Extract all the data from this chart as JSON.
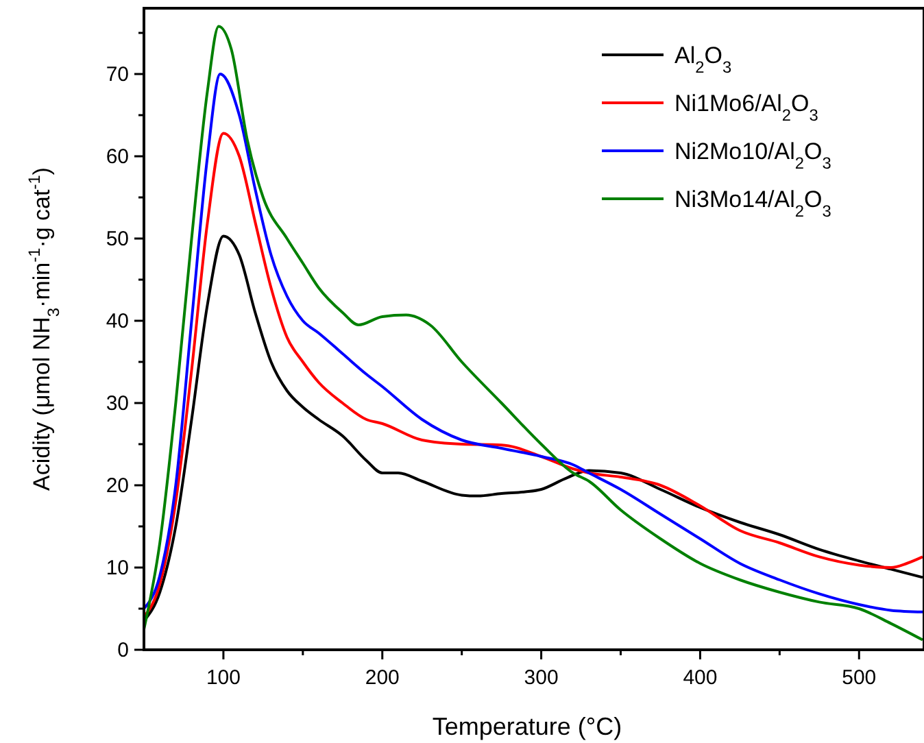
{
  "chart_data": {
    "type": "line",
    "xlabel": "Temperature (°C)",
    "ylabel": "Acidity (μmol NH$_{3}$·min$^{-1}$·g cat$^{-1}$)",
    "xlim": [
      50,
      540
    ],
    "ylim": [
      0,
      78
    ],
    "xticks": [
      100,
      {
        "value": 150,
        "label": null
      },
      200,
      {
        "value": 250,
        "label": null
      },
      300,
      {
        "value": 350,
        "label": null
      },
      400,
      {
        "value": 450,
        "label": null
      },
      500
    ],
    "yticks": [
      0,
      {
        "value": 5,
        "label": null
      },
      10,
      {
        "value": 15,
        "label": null
      },
      20,
      {
        "value": 25,
        "label": null
      },
      30,
      {
        "value": 35,
        "label": null
      },
      40,
      {
        "value": 45,
        "label": null
      },
      50,
      {
        "value": 55,
        "label": null
      },
      60,
      {
        "value": 65,
        "label": null
      },
      70,
      {
        "value": 75,
        "label": null
      }
    ],
    "legend": "top right",
    "grid": false,
    "marker": "none",
    "line_style": "solid",
    "series": [
      {
        "name": "Al$_{2}$O$_{3}$",
        "color": "#000000",
        "x": [
          50,
          60,
          70,
          80,
          90,
          100,
          110,
          120,
          130,
          140,
          150,
          160,
          175,
          190,
          200,
          210,
          225,
          250,
          260,
          275,
          290,
          300,
          315,
          330,
          350,
          375,
          400,
          425,
          450,
          475,
          500,
          520,
          540
        ],
        "values": [
          3.5,
          7,
          15,
          28,
          42,
          50.3,
          48,
          41,
          35,
          31.5,
          29.5,
          28,
          26,
          23,
          21.5,
          21.5,
          20.5,
          18.8,
          18.7,
          19,
          19.2,
          19.5,
          20.8,
          21.8,
          21.5,
          19.5,
          17.3,
          15.5,
          14,
          12.2,
          10.8,
          9.8,
          8.8
        ]
      },
      {
        "name": "Ni1Mo6/Al$_{2}$O$_{3}$",
        "color": "#ff0000",
        "x": [
          50,
          60,
          70,
          80,
          90,
          100,
          110,
          120,
          130,
          140,
          150,
          160,
          175,
          190,
          200,
          225,
          250,
          275,
          300,
          320,
          330,
          350,
          375,
          400,
          425,
          450,
          475,
          500,
          520,
          530,
          540
        ],
        "values": [
          4,
          8,
          18,
          34,
          52,
          62.8,
          60,
          52,
          44,
          38,
          35,
          32.5,
          30,
          28,
          27.5,
          25.5,
          25,
          24.9,
          23.5,
          22,
          21.5,
          21,
          20,
          17.5,
          14.5,
          13,
          11.3,
          10.3,
          10,
          10.5,
          11.3
        ]
      },
      {
        "name": "Ni2Mo10/Al$_{2}$O$_{3}$",
        "color": "#0000ff",
        "x": [
          50,
          60,
          70,
          80,
          90,
          98,
          110,
          120,
          130,
          140,
          150,
          160,
          175,
          190,
          200,
          225,
          250,
          275,
          300,
          320,
          330,
          350,
          375,
          400,
          425,
          450,
          475,
          500,
          520,
          540
        ],
        "values": [
          5,
          9,
          20,
          40,
          60,
          70,
          65,
          56,
          48,
          43,
          40,
          38.5,
          36,
          33.5,
          32,
          28,
          25.5,
          24.5,
          23.5,
          22.5,
          21.5,
          19.5,
          16.5,
          13.5,
          10.5,
          8.5,
          6.8,
          5.5,
          4.8,
          4.6
        ]
      },
      {
        "name": "Ni3Mo14/Al$_{2}$O$_{3}$",
        "color": "#008000",
        "x": [
          50,
          60,
          70,
          80,
          90,
          97,
          105,
          115,
          125,
          140,
          150,
          160,
          175,
          185,
          200,
          215,
          230,
          250,
          275,
          300,
          320,
          330,
          350,
          375,
          400,
          425,
          450,
          475,
          500,
          520,
          540
        ],
        "values": [
          2.5,
          13,
          30,
          50,
          68,
          75.8,
          73,
          62,
          55,
          50,
          47,
          44,
          41,
          39.5,
          40.5,
          40.7,
          39.5,
          35,
          30,
          25,
          21.5,
          20.5,
          17,
          13.5,
          10.5,
          8.5,
          7,
          5.8,
          5,
          3.2,
          1.2
        ]
      }
    ]
  }
}
